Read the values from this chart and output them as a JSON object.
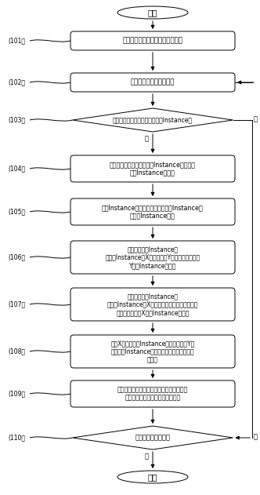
{
  "title": "开始",
  "end": "结束",
  "s101": "按层次调用关系拓扑排序所有单元",
  "s102": "按拓扑序获取下一个单元",
  "s103": "单元是否含子单元阵列或实例（Instance）",
  "s104_l1": "将子单元的阵列临时展开为Instance，保存到",
  "s104_l2": "临时Instance容器中",
  "s105_l1": "按照Instance的放置点坐标，对临时Instance容",
  "s105_l2": "器中的Instance排序",
  "s106_l1": "依序逐个遍取Instance，",
  "s106_l2": "若前后Instance的X坐标相同、Y坐标不同，则构成",
  "s106_l3": "Y等跜Instance集合。",
  "s107_l1": "依序逐个遍取Instance，",
  "s107_l2": "若前后Instance的X坐标不同或已经遍历完最后一",
  "s107_l3": "个实例，则构造X等跜Instance集合。",
  "s108_l1": "按照X方向等间跜Instance集合和其每行Y方",
  "s108_l2": "向等间跜Instance集合，创建拼接后的子单元",
  "s108_l3": "数阵列",
  "s109_l1": "删除子单元的原始阵列和原始实例，插入拼",
  "s109_l2": "接的子单元阵列和拼接成组的实例",
  "s110": "是否有未获取的单元",
  "yes_label": "是",
  "no_label": "否",
  "bg_color": "#ffffff",
  "box_color": "#ffffff",
  "box_edge": "#000000",
  "text_color": "#000000",
  "arrow_color": "#000000"
}
